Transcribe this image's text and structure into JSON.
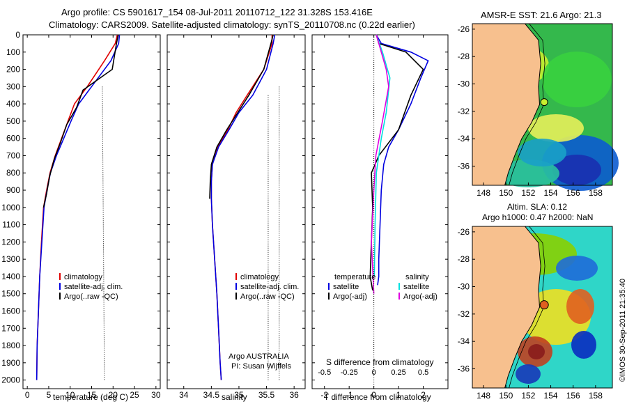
{
  "header": {
    "title_line1": "Argo profile: CS 5901617_154 08-Jul-2011 20110712_122 31.328S 153.416E",
    "title_line2": "Climatology: CARS2009. Satellite-adjusted climatology: synTS_20110708.nc (0.22d earlier)"
  },
  "colors": {
    "climatology": "#e00000",
    "satellite": "#0000e0",
    "argo": "#000000",
    "satellite_salinity": "#00e0e0",
    "argo_salinity": "#e000e0",
    "land": "#f7c08e"
  },
  "map_top": {
    "title": "AMSR-E SST: 21.6 Argo: 21.3"
  },
  "map_bottom": {
    "title_line1": "Altim. SLA: 0.12",
    "title_line2": "Argo h1000: 0.47 h2000: NaN"
  },
  "credit": "©IMOS 30-Sep-2011 21:35:40",
  "panel_notes": {
    "argo": "Argo AUSTRALIA",
    "pi": "PI: Susan Wijffels"
  },
  "chart_data": [
    {
      "type": "line",
      "id": "temperature",
      "xlabel": "temperature (deg C)",
      "ylabel": "",
      "xlim": [
        -1,
        31
      ],
      "ylim": [
        2050,
        0
      ],
      "xticks": [
        0,
        5,
        10,
        15,
        20,
        25,
        30
      ],
      "yticks": [
        0,
        100,
        200,
        300,
        400,
        500,
        600,
        700,
        800,
        900,
        1000,
        1100,
        1200,
        1300,
        1400,
        1500,
        1600,
        1700,
        1800,
        1900,
        2000
      ],
      "legend": {
        "placement": "bottom-left",
        "entries": [
          "climatology",
          "satellite-adj. clim.",
          "Argo(..raw -QC)"
        ]
      },
      "series": [
        {
          "name": "climatology",
          "key": "climatology",
          "x": [
            21,
            20.5,
            18,
            14,
            11,
            9.5,
            8,
            6.5,
            5.3,
            4.5,
            3.8,
            3.3,
            2.9,
            2.6,
            2.3,
            2.2
          ],
          "y": [
            0,
            50,
            150,
            300,
            400,
            500,
            600,
            700,
            800,
            900,
            1000,
            1200,
            1400,
            1600,
            1800,
            2000
          ]
        },
        {
          "name": "satellite-adj. clim.",
          "key": "satellite",
          "x": [
            21.5,
            21.3,
            19.5,
            15,
            12,
            10.2,
            8.5,
            6.8,
            5.4,
            4.6,
            3.9,
            3.4,
            2.9,
            2.6,
            2.3,
            2.2
          ],
          "y": [
            0,
            50,
            150,
            300,
            400,
            500,
            600,
            700,
            800,
            900,
            1000,
            1200,
            1400,
            1600,
            1800,
            2000
          ]
        },
        {
          "name": "Argo(..raw -QC)",
          "key": "argo",
          "x": [
            21.2,
            20.8,
            19.8,
            13,
            11.5,
            9.2,
            7.8,
            6.3,
            5.2,
            4.5,
            3.8
          ],
          "y": [
            0,
            50,
            200,
            320,
            420,
            520,
            620,
            720,
            820,
            920,
            1000
          ]
        }
      ]
    },
    {
      "type": "line",
      "id": "salinity",
      "xlabel": "salinity",
      "ylabel": "",
      "xlim": [
        33.7,
        36.2
      ],
      "ylim": [
        2050,
        0
      ],
      "xticks": [
        34,
        34.5,
        35,
        35.5,
        36
      ],
      "legend": {
        "placement": "bottom-right",
        "entries": [
          "climatology",
          "satellite-adj. clim.",
          "Argo(..raw -QC)"
        ]
      },
      "series": [
        {
          "name": "climatology",
          "key": "climatology",
          "x": [
            35.6,
            35.6,
            35.45,
            35.15,
            34.95,
            34.8,
            34.62,
            34.52,
            34.5,
            34.5,
            34.52,
            34.56,
            34.6,
            34.63,
            34.66,
            34.68
          ],
          "y": [
            0,
            50,
            200,
            350,
            450,
            550,
            650,
            750,
            850,
            950,
            1100,
            1300,
            1500,
            1700,
            1900,
            2000
          ]
        },
        {
          "name": "satellite-adj. clim.",
          "key": "satellite",
          "x": [
            35.65,
            35.62,
            35.5,
            35.25,
            35.0,
            34.82,
            34.63,
            34.52,
            34.5,
            34.5,
            34.52,
            34.56,
            34.6,
            34.63,
            34.66,
            34.68
          ],
          "y": [
            0,
            50,
            200,
            350,
            450,
            550,
            650,
            750,
            850,
            950,
            1100,
            1300,
            1500,
            1700,
            1900,
            2000
          ]
        },
        {
          "name": "Argo(..raw -QC)",
          "key": "argo",
          "x": [
            35.62,
            35.58,
            35.45,
            35.18,
            34.98,
            34.78,
            34.6,
            34.5,
            34.48,
            34.47
          ],
          "y": [
            0,
            50,
            200,
            350,
            450,
            550,
            650,
            750,
            850,
            950
          ]
        }
      ]
    },
    {
      "type": "line",
      "id": "difference",
      "xlabel": "T difference from climatology",
      "title_bottom": "S difference from climatology",
      "xlim": [
        -2.5,
        3
      ],
      "ylim": [
        2050,
        0
      ],
      "xticks": [
        -2,
        -1,
        0,
        1,
        2
      ],
      "top_ticks": [
        "-0.5",
        "-0.25",
        "0",
        "0.25",
        "0.5"
      ],
      "legend": {
        "placement": "bottom",
        "temperature_title": "temperature",
        "salinity_title": "salinity",
        "entries": [
          "satellite",
          "Argo(-adj)",
          "satellite",
          "Argo(-adj)"
        ]
      },
      "series": [
        {
          "name": "satellite",
          "key": "satellite",
          "x": [
            0.1,
            0.3,
            1.5,
            2.2,
            1.9,
            1.5,
            1.0,
            0.6,
            0.4,
            0.3,
            0.25,
            0.2,
            0.2,
            0.15
          ],
          "y": [
            0,
            50,
            100,
            150,
            250,
            400,
            550,
            650,
            750,
            900,
            1100,
            1300,
            1400,
            1450
          ]
        },
        {
          "name": "Argo(-adj)",
          "key": "argo",
          "x": [
            0.1,
            0.2,
            1.3,
            2.0,
            1.5,
            1.0,
            0.2,
            -0.1,
            -0.05,
            -0.1,
            -0.15,
            -0.05
          ],
          "y": [
            0,
            50,
            100,
            200,
            350,
            550,
            700,
            800,
            1000,
            1200,
            1400,
            1480
          ]
        },
        {
          "name": "satellite",
          "key": "satellite_salinity",
          "x": [
            0.1,
            0.35,
            0.65,
            0.5,
            0.3,
            0.1,
            0.05,
            0.02
          ],
          "y": [
            0,
            100,
            250,
            450,
            600,
            800,
            1100,
            1400
          ]
        },
        {
          "name": "Argo(-adj)",
          "key": "argo_salinity",
          "x": [
            0.1,
            0.5,
            0.6,
            0.35,
            0.08,
            0,
            -0.1,
            0
          ],
          "y": [
            0,
            200,
            300,
            500,
            700,
            900,
            1200,
            1500
          ]
        }
      ]
    },
    {
      "type": "heatmap",
      "id": "sst_map",
      "title": "AMSR-E SST: 21.6 Argo: 21.3",
      "xticks": [
        148,
        150,
        152,
        154,
        156,
        158
      ],
      "yticks": [
        -26,
        -28,
        -30,
        -32,
        -34,
        -36
      ],
      "xlim": [
        147,
        159.5
      ],
      "ylim": [
        -37.4,
        -25.6
      ],
      "marker": {
        "lon": 153.416,
        "lat": -31.328
      }
    },
    {
      "type": "heatmap",
      "id": "sla_map",
      "title": "Altim. SLA: 0.12",
      "xticks": [
        148,
        150,
        152,
        154,
        156,
        158
      ],
      "yticks": [
        -26,
        -28,
        -30,
        -32,
        -34,
        -36
      ],
      "xlim": [
        147,
        159.5
      ],
      "ylim": [
        -37.4,
        -25.6
      ],
      "marker": {
        "lon": 153.416,
        "lat": -31.328
      }
    }
  ]
}
